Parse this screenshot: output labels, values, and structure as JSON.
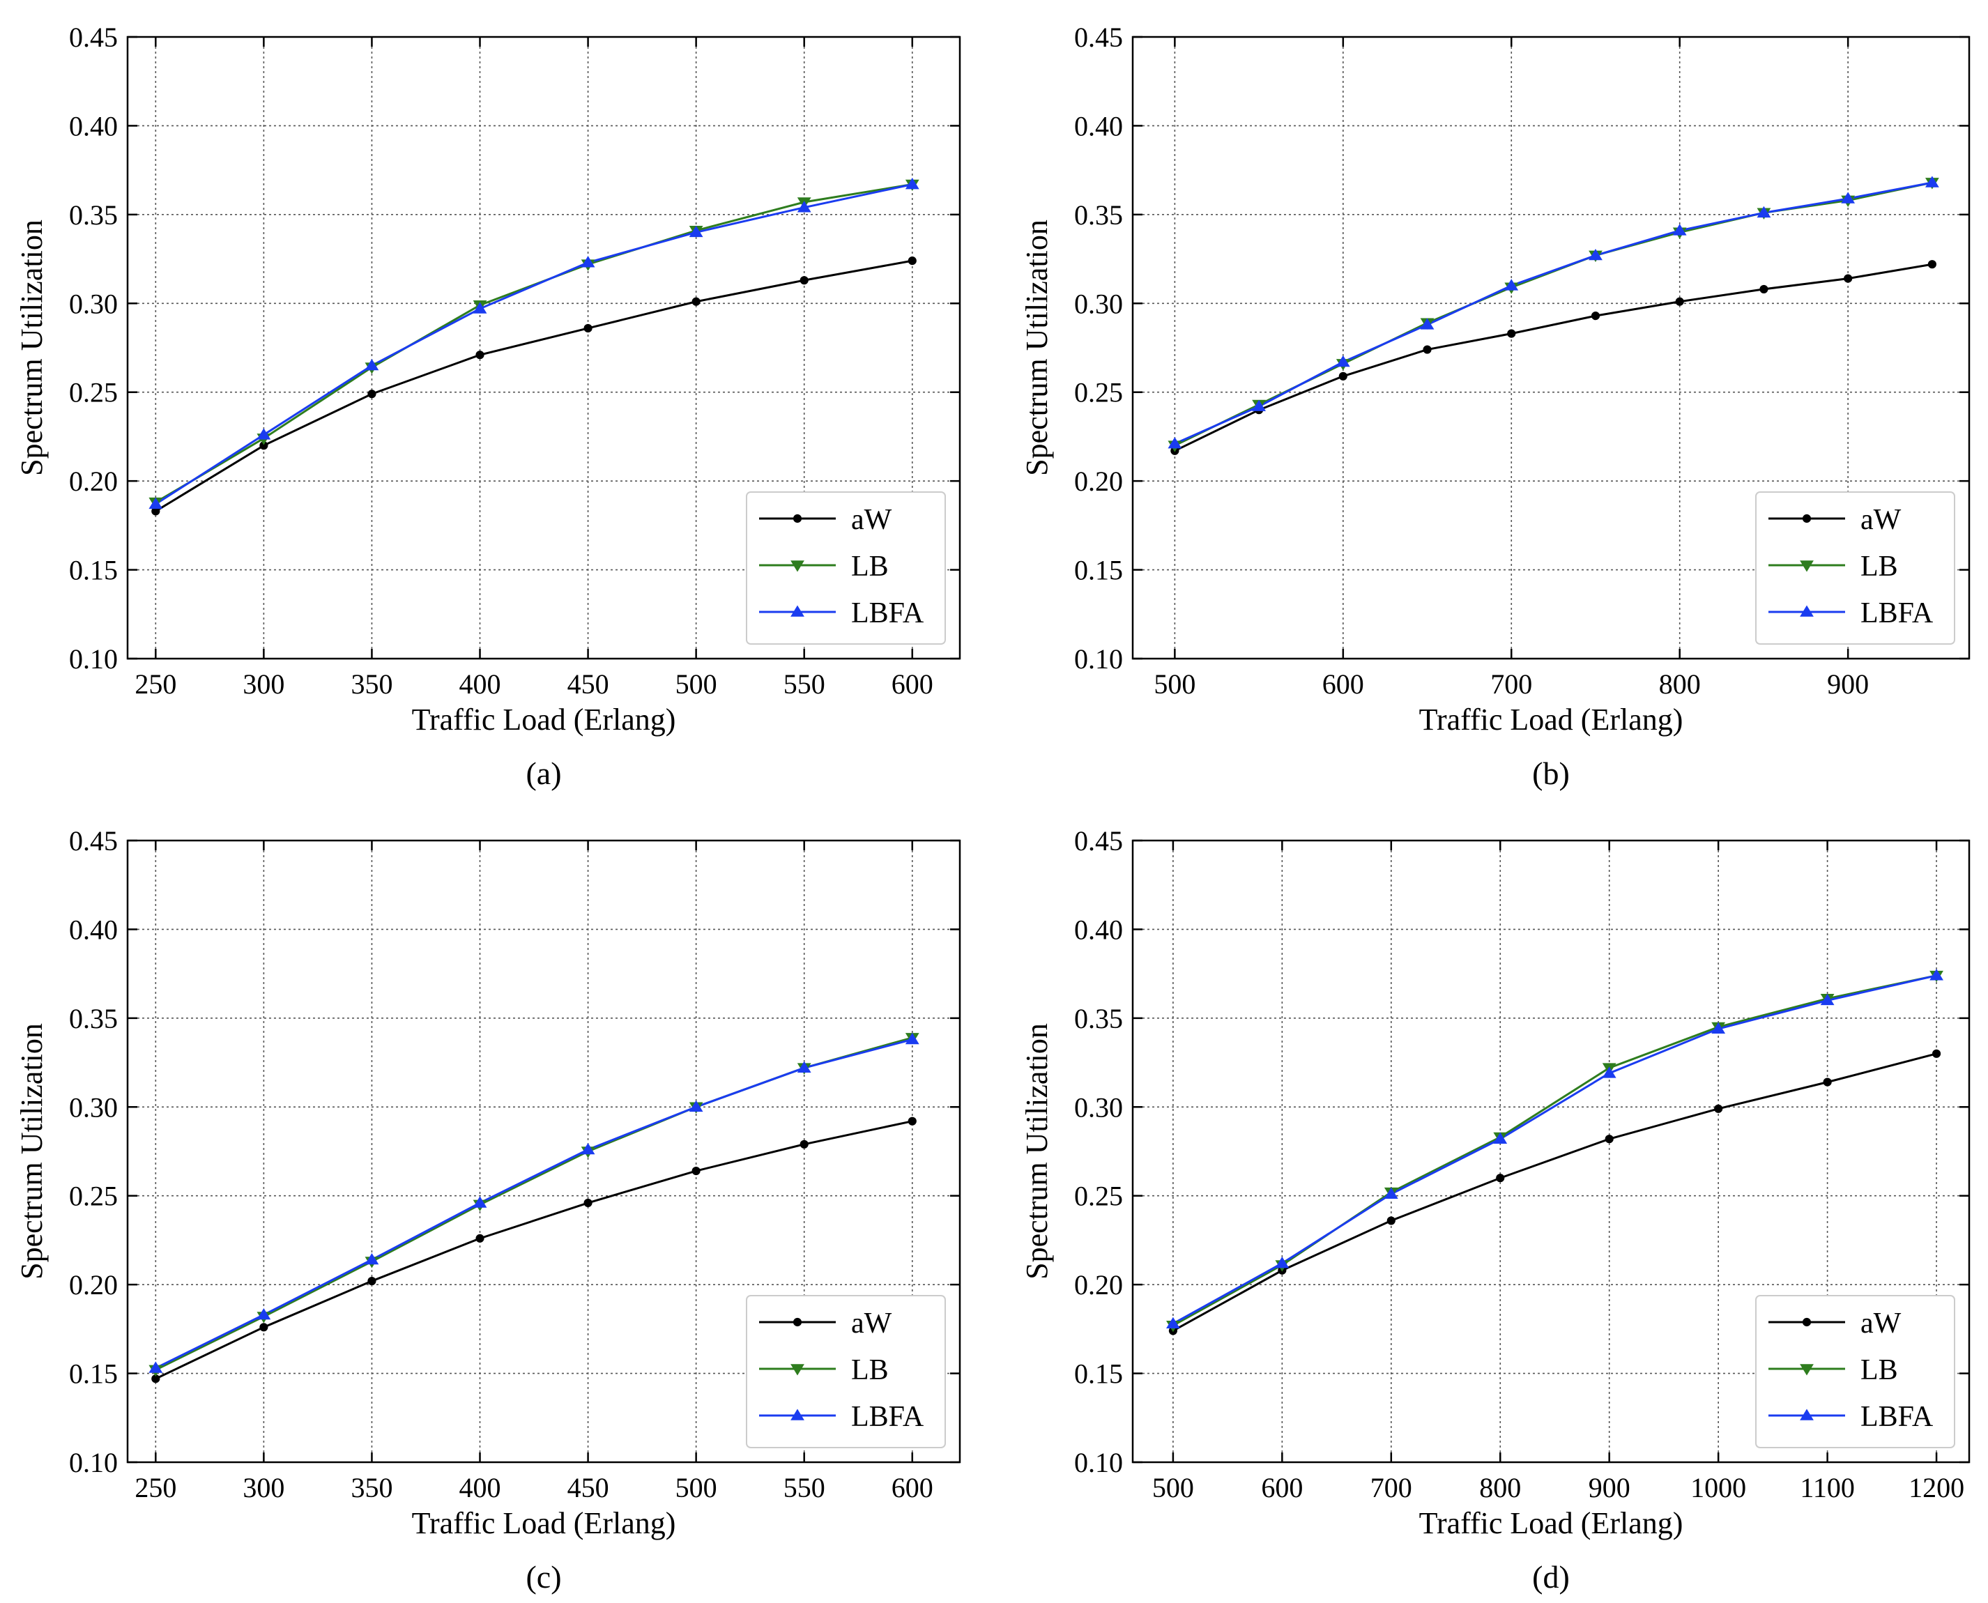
{
  "chart_data": [
    {
      "type": "line",
      "panel_label": "(a)",
      "xlabel": "Traffic Load (Erlang)",
      "ylabel": "Spectrum Utilization",
      "x": [
        250,
        300,
        350,
        400,
        450,
        500,
        550,
        600
      ],
      "xticks": [
        250,
        300,
        350,
        400,
        450,
        500,
        550,
        600
      ],
      "xlim": [
        237,
        622
      ],
      "ylim": [
        0.1,
        0.45
      ],
      "yticks": [
        0.1,
        0.15,
        0.2,
        0.25,
        0.3,
        0.35,
        0.4,
        0.45
      ],
      "ytick_labels": [
        "0.10",
        "0.15",
        "0.20",
        "0.25",
        "0.30",
        "0.35",
        "0.40",
        "0.45"
      ],
      "grid": true,
      "legend_position": "lower-right",
      "series": [
        {
          "name": "aW",
          "color": "#000000",
          "marker": "circle",
          "values": [
            0.183,
            0.22,
            0.249,
            0.271,
            0.286,
            0.301,
            0.313,
            0.324
          ]
        },
        {
          "name": "LB",
          "color": "#2e7d1e",
          "marker": "triangle-down",
          "values": [
            0.188,
            0.224,
            0.264,
            0.299,
            0.322,
            0.341,
            0.357,
            0.367
          ]
        },
        {
          "name": "LBFA",
          "color": "#1a3cf0",
          "marker": "triangle-up",
          "values": [
            0.187,
            0.226,
            0.265,
            0.297,
            0.323,
            0.34,
            0.354,
            0.367
          ]
        }
      ]
    },
    {
      "type": "line",
      "panel_label": "(b)",
      "xlabel": "Traffic Load (Erlang)",
      "ylabel": "Spectrum Utilization",
      "x": [
        500,
        550,
        600,
        650,
        700,
        750,
        800,
        850,
        900,
        950
      ],
      "xticks": [
        500,
        600,
        700,
        800,
        900
      ],
      "xlim": [
        475,
        972
      ],
      "ylim": [
        0.1,
        0.45
      ],
      "yticks": [
        0.1,
        0.15,
        0.2,
        0.25,
        0.3,
        0.35,
        0.4,
        0.45
      ],
      "ytick_labels": [
        "0.10",
        "0.15",
        "0.20",
        "0.25",
        "0.30",
        "0.35",
        "0.40",
        "0.45"
      ],
      "grid": true,
      "legend_position": "lower-right",
      "series": [
        {
          "name": "aW",
          "color": "#000000",
          "marker": "circle",
          "values": [
            0.217,
            0.24,
            0.259,
            0.274,
            0.283,
            0.293,
            0.301,
            0.308,
            0.314,
            0.322
          ]
        },
        {
          "name": "LB",
          "color": "#2e7d1e",
          "marker": "triangle-down",
          "values": [
            0.22,
            0.243,
            0.266,
            0.289,
            0.309,
            0.327,
            0.34,
            0.351,
            0.358,
            0.368
          ]
        },
        {
          "name": "LBFA",
          "color": "#1a3cf0",
          "marker": "triangle-up",
          "values": [
            0.221,
            0.242,
            0.267,
            0.288,
            0.31,
            0.327,
            0.341,
            0.351,
            0.359,
            0.368
          ]
        }
      ]
    },
    {
      "type": "line",
      "panel_label": "(c)",
      "xlabel": "Traffic Load (Erlang)",
      "ylabel": "Spectrum Utilization",
      "x": [
        250,
        300,
        350,
        400,
        450,
        500,
        550,
        600
      ],
      "xticks": [
        250,
        300,
        350,
        400,
        450,
        500,
        550,
        600
      ],
      "xlim": [
        237,
        622
      ],
      "ylim": [
        0.1,
        0.45
      ],
      "yticks": [
        0.1,
        0.15,
        0.2,
        0.25,
        0.3,
        0.35,
        0.4,
        0.45
      ],
      "ytick_labels": [
        "0.10",
        "0.15",
        "0.20",
        "0.25",
        "0.30",
        "0.35",
        "0.40",
        "0.45"
      ],
      "grid": true,
      "legend_position": "lower-right",
      "series": [
        {
          "name": "aW",
          "color": "#000000",
          "marker": "circle",
          "values": [
            0.147,
            0.176,
            0.202,
            0.226,
            0.246,
            0.264,
            0.279,
            0.292
          ]
        },
        {
          "name": "LB",
          "color": "#2e7d1e",
          "marker": "triangle-down",
          "values": [
            0.152,
            0.182,
            0.213,
            0.245,
            0.275,
            0.3,
            0.322,
            0.339
          ]
        },
        {
          "name": "LBFA",
          "color": "#1a3cf0",
          "marker": "triangle-up",
          "values": [
            0.153,
            0.183,
            0.214,
            0.246,
            0.276,
            0.3,
            0.322,
            0.338
          ]
        }
      ]
    },
    {
      "type": "line",
      "panel_label": "(d)",
      "xlabel": "Traffic Load (Erlang)",
      "ylabel": "Spectrum Utilization",
      "x": [
        500,
        600,
        700,
        800,
        900,
        1000,
        1100,
        1200
      ],
      "xticks": [
        500,
        600,
        700,
        800,
        900,
        1000,
        1100,
        1200
      ],
      "xlim": [
        463,
        1230
      ],
      "ylim": [
        0.1,
        0.45
      ],
      "yticks": [
        0.1,
        0.15,
        0.2,
        0.25,
        0.3,
        0.35,
        0.4,
        0.45
      ],
      "ytick_labels": [
        "0.10",
        "0.15",
        "0.20",
        "0.25",
        "0.30",
        "0.35",
        "0.40",
        "0.45"
      ],
      "grid": true,
      "legend_position": "lower-right",
      "series": [
        {
          "name": "aW",
          "color": "#000000",
          "marker": "circle",
          "values": [
            0.174,
            0.208,
            0.236,
            0.26,
            0.282,
            0.299,
            0.314,
            0.33
          ]
        },
        {
          "name": "LB",
          "color": "#2e7d1e",
          "marker": "triangle-down",
          "values": [
            0.177,
            0.211,
            0.252,
            0.283,
            0.322,
            0.345,
            0.361,
            0.374
          ]
        },
        {
          "name": "LBFA",
          "color": "#1a3cf0",
          "marker": "triangle-up",
          "values": [
            0.178,
            0.212,
            0.251,
            0.282,
            0.319,
            0.344,
            0.36,
            0.374
          ]
        }
      ]
    }
  ]
}
